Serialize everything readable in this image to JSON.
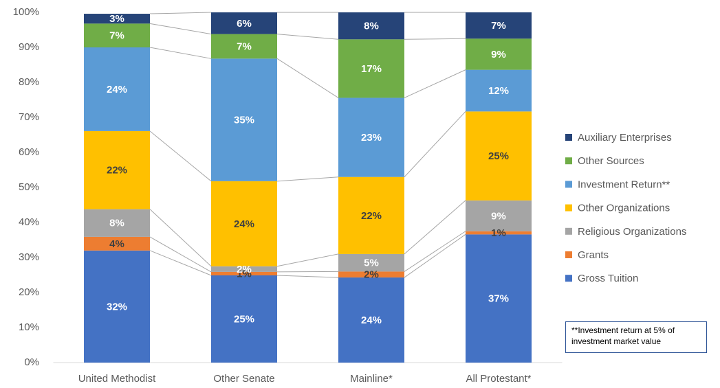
{
  "chart_data": {
    "type": "stacked_bar",
    "categories": [
      "United Methodist",
      "Other Senate",
      "Mainline*",
      "All Protestant*"
    ],
    "series": [
      {
        "name": "Gross Tuition",
        "color": "#4472c4",
        "label_color": "#ffffff",
        "values": [
          32,
          24.9,
          24.3,
          36.6
        ],
        "value_labels": [
          "32%",
          "25%",
          "24%",
          "37%"
        ]
      },
      {
        "name": "Grants",
        "color": "#ed7d31",
        "label_color": "#404040",
        "values": [
          3.9,
          1,
          1.7,
          0.9
        ],
        "value_labels": [
          "4%",
          "1%",
          "2%",
          "1%"
        ]
      },
      {
        "name": "Religious Organizations",
        "color": "#a5a5a5",
        "label_color": "#ffffff",
        "values": [
          7.9,
          1.6,
          5,
          8.8
        ],
        "value_labels": [
          "8%",
          "2%",
          "5%",
          "9%"
        ]
      },
      {
        "name": "Other Organizations",
        "color": "#ffc000",
        "label_color": "#404040",
        "values": [
          22.3,
          24.3,
          22,
          25.4
        ],
        "value_labels": [
          "22%",
          "24%",
          "22%",
          "25%"
        ]
      },
      {
        "name": "Investment Return**",
        "color": "#5b9bd5",
        "label_color": "#ffffff",
        "values": [
          23.9,
          35,
          22.6,
          11.9
        ],
        "value_labels": [
          "24%",
          "35%",
          "23%",
          "12%"
        ]
      },
      {
        "name": "Other Sources",
        "color": "#70ad47",
        "label_color": "#ffffff",
        "values": [
          6.8,
          7,
          16.7,
          8.9
        ],
        "value_labels": [
          "7%",
          "7%",
          "17%",
          "9%"
        ]
      },
      {
        "name": "Auxiliary Enterprises",
        "color": "#264478",
        "label_color": "#ffffff",
        "values": [
          2.8,
          6.2,
          7.7,
          7.5
        ],
        "value_labels": [
          "3%",
          "6%",
          "8%",
          "7%"
        ]
      }
    ],
    "ylim": [
      0,
      100
    ],
    "yticks": [
      {
        "value": 0,
        "label": "0%"
      },
      {
        "value": 10,
        "label": "10%"
      },
      {
        "value": 20,
        "label": "20%"
      },
      {
        "value": 30,
        "label": "30%"
      },
      {
        "value": 40,
        "label": "40%"
      },
      {
        "value": 50,
        "label": "50%"
      },
      {
        "value": 60,
        "label": "60%"
      },
      {
        "value": 70,
        "label": "70%"
      },
      {
        "value": 80,
        "label": "80%"
      },
      {
        "value": 90,
        "label": "90%"
      },
      {
        "value": 100,
        "label": "100%"
      }
    ],
    "legend": "right",
    "annotation": "**Investment return at 5% of investment market value"
  }
}
